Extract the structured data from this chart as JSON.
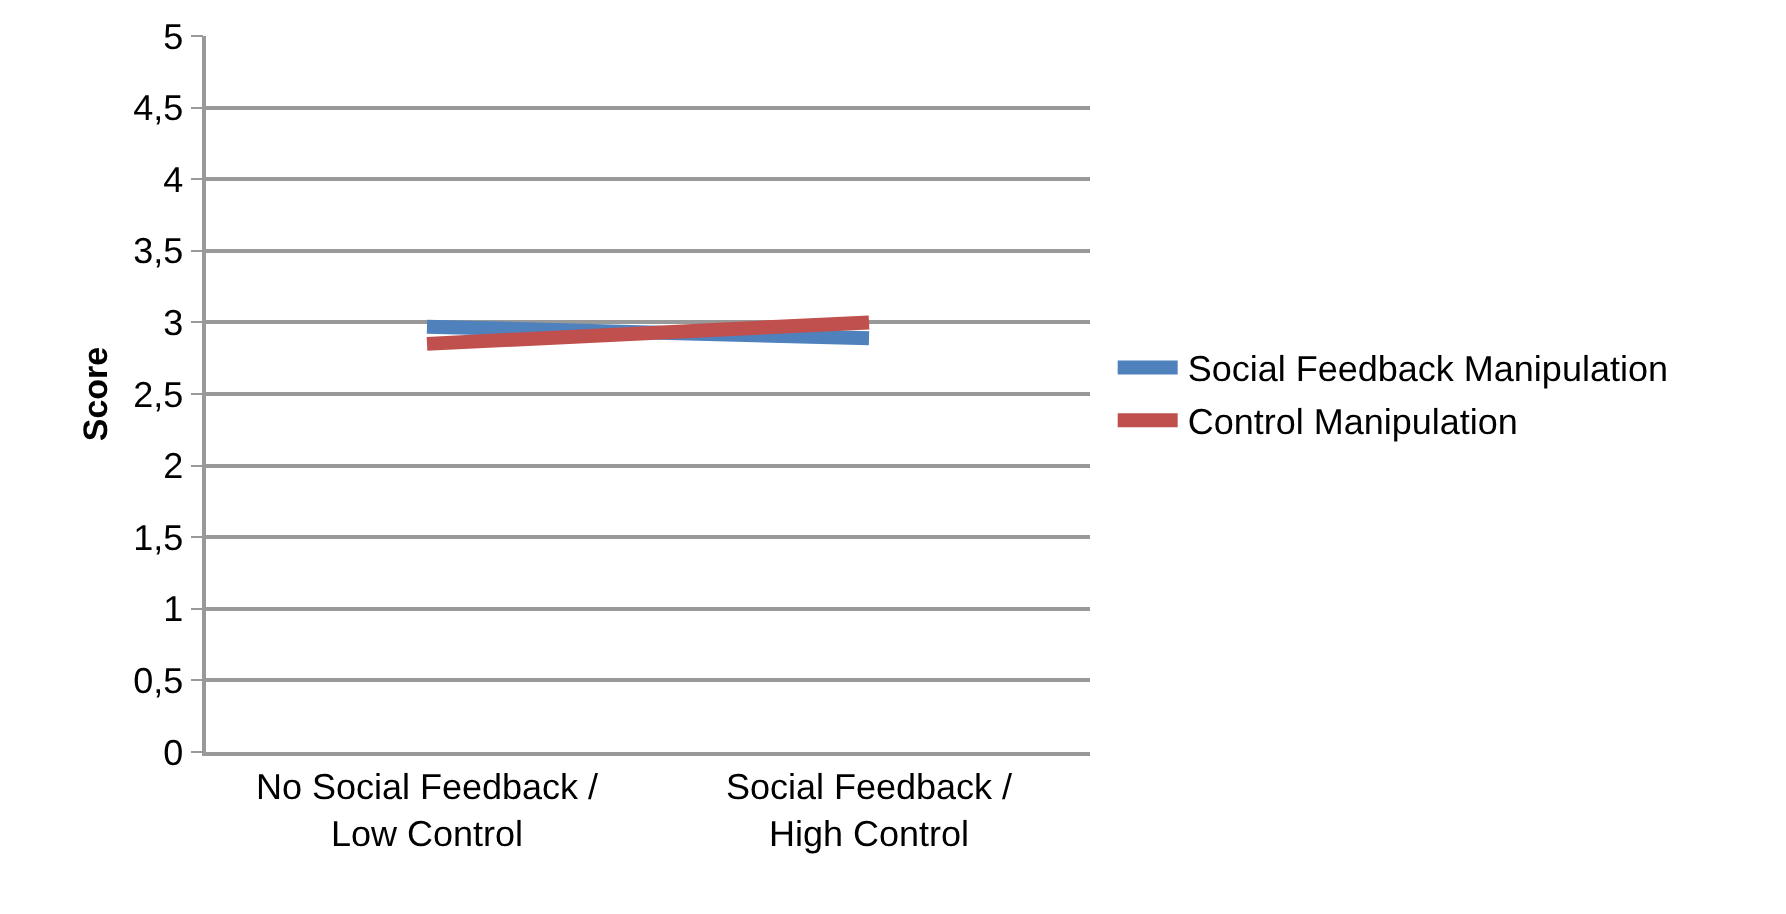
{
  "chart_data": {
    "type": "line",
    "ylabel": "Score",
    "categories": [
      "No Social Feedback / Low Control",
      "Social Feedback / High Control"
    ],
    "series": [
      {
        "name": "Social Feedback Manipulation",
        "color": "#4f81bd",
        "values": [
          2.97,
          2.89
        ]
      },
      {
        "name": "Control Manipulation",
        "color": "#c0504d",
        "values": [
          2.85,
          3.0
        ]
      }
    ],
    "ylim": [
      0,
      5
    ],
    "yticks": [
      0,
      {
        "value": 0.5,
        "label": "0,5"
      },
      1,
      {
        "value": 1.5,
        "label": "1,5"
      },
      2,
      {
        "value": 2.5,
        "label": "2,5"
      },
      3,
      {
        "value": 3.5,
        "label": "3,5"
      },
      4,
      {
        "value": 4.5,
        "label": "4,5"
      },
      5
    ],
    "grid": "y",
    "legend": "right",
    "marker": "none",
    "line_style": "solid"
  }
}
